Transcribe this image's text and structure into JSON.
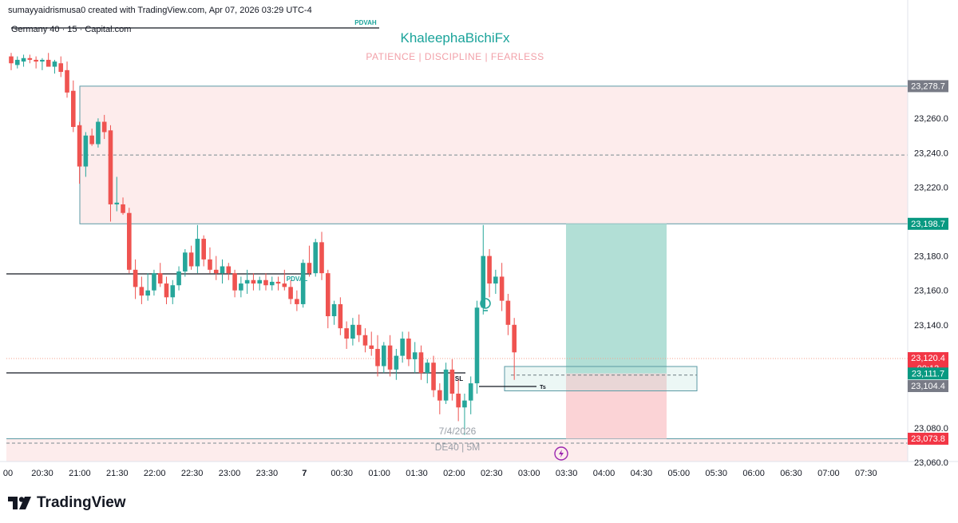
{
  "header": {
    "credit": "sumayyaidrismusa0 created with TradingView.com, Apr 07, 2026 03:29 UTC-4",
    "symbol": "Germany 40 · 15 · Capital.com"
  },
  "branding": {
    "title": "KhaleephaBichiFx",
    "motto": "PATIENCE | DISCIPLINE | FEARLESS",
    "watermark_date": "7/4/2026",
    "watermark_symbol": "DE40 | 5M",
    "footer_logo": "TradingView"
  },
  "colors": {
    "up": "#26a69a",
    "down": "#ef5350",
    "zone_fill": "#fdecec",
    "zone_border": "#5b9aa5",
    "profit_fill": "#b2dfd6",
    "loss_fill": "#fbd3d6",
    "teal_label": "#089981",
    "red_label": "#f23645",
    "gray_label": "#787b86",
    "brand": "#1aa39a"
  },
  "chart_data": {
    "type": "candlestick",
    "timeframe": "15",
    "ylim": [
      23042,
      23300
    ],
    "x_ticks": [
      "20:30",
      "21:00",
      "21:30",
      "22:00",
      "22:30",
      "23:00",
      "23:30",
      "7",
      "00:30",
      "01:00",
      "01:30",
      "02:00",
      "02:30",
      "03:00",
      "03:30",
      "04:00",
      "04:30",
      "05:00",
      "05:30",
      "06:00",
      "06:30",
      "07:00",
      "07:30"
    ],
    "y_ticks": [
      "23,260.0",
      "23,240.0",
      "23,220.0",
      "23,180.0",
      "23,160.0",
      "23,140.0",
      "23,080.0",
      "23,060.0"
    ],
    "candles": [
      [
        23296,
        23298,
        23288,
        23292
      ],
      [
        23291,
        23296,
        23289,
        23294
      ],
      [
        23293,
        23297,
        23290,
        23295
      ],
      [
        23295,
        23297,
        23292,
        23294
      ],
      [
        23294,
        23296,
        23289,
        23293
      ],
      [
        23293,
        23295,
        23288,
        23294
      ],
      [
        23294,
        23298,
        23291,
        23290
      ],
      [
        23290,
        23294,
        23286,
        23293
      ],
      [
        23292,
        23296,
        23284,
        23287
      ],
      [
        23288,
        23293,
        23272,
        23275
      ],
      [
        23276,
        23282,
        23252,
        23255
      ],
      [
        23256,
        23258,
        23222,
        23232
      ],
      [
        23232,
        23252,
        23226,
        23250
      ],
      [
        23250,
        23254,
        23244,
        23245
      ],
      [
        23245,
        23260,
        23243,
        23258
      ],
      [
        23258,
        23262,
        23248,
        23252
      ],
      [
        23253,
        23256,
        23200,
        23210
      ],
      [
        23210,
        23226,
        23206,
        23211
      ],
      [
        23210,
        23214,
        23204,
        23205
      ],
      [
        23205,
        23208,
        23170,
        23172
      ],
      [
        23172,
        23178,
        23155,
        23162
      ],
      [
        23162,
        23168,
        23152,
        23157
      ],
      [
        23157,
        23170,
        23154,
        23160
      ],
      [
        23160,
        23172,
        23157,
        23170
      ],
      [
        23170,
        23176,
        23162,
        23164
      ],
      [
        23164,
        23168,
        23152,
        23156
      ],
      [
        23156,
        23166,
        23152,
        23163
      ],
      [
        23163,
        23174,
        23160,
        23171
      ],
      [
        23171,
        23184,
        23168,
        23182
      ],
      [
        23182,
        23186,
        23172,
        23174
      ],
      [
        23174,
        23198,
        23170,
        23190
      ],
      [
        23190,
        23192,
        23174,
        23178
      ],
      [
        23178,
        23185,
        23170,
        23172
      ],
      [
        23172,
        23180,
        23166,
        23170
      ],
      [
        23170,
        23178,
        23164,
        23174
      ],
      [
        23174,
        23176,
        23166,
        23170
      ],
      [
        23170,
        23172,
        23156,
        23160
      ],
      [
        23160,
        23168,
        23156,
        23164
      ],
      [
        23164,
        23172,
        23158,
        23166
      ],
      [
        23166,
        23170,
        23160,
        23164
      ],
      [
        23164,
        23168,
        23160,
        23166
      ],
      [
        23166,
        23170,
        23160,
        23163
      ],
      [
        23163,
        23168,
        23160,
        23165
      ],
      [
        23165,
        23168,
        23160,
        23164
      ],
      [
        23164,
        23172,
        23160,
        23162
      ],
      [
        23162,
        23166,
        23152,
        23155
      ],
      [
        23155,
        23160,
        23148,
        23152
      ],
      [
        23152,
        23178,
        23150,
        23176
      ],
      [
        23176,
        23186,
        23168,
        23170
      ],
      [
        23170,
        23190,
        23168,
        23188
      ],
      [
        23188,
        23194,
        23166,
        23170
      ],
      [
        23170,
        23172,
        23138,
        23145
      ],
      [
        23145,
        23154,
        23140,
        23152
      ],
      [
        23152,
        23156,
        23134,
        23138
      ],
      [
        23138,
        23142,
        23126,
        23132
      ],
      [
        23132,
        23144,
        23128,
        23140
      ],
      [
        23140,
        23146,
        23130,
        23134
      ],
      [
        23134,
        23138,
        23124,
        23128
      ],
      [
        23128,
        23136,
        23122,
        23126
      ],
      [
        23126,
        23134,
        23110,
        23116
      ],
      [
        23116,
        23130,
        23112,
        23128
      ],
      [
        23128,
        23134,
        23110,
        23114
      ],
      [
        23114,
        23126,
        23108,
        23122
      ],
      [
        23122,
        23136,
        23118,
        23132
      ],
      [
        23132,
        23136,
        23116,
        23120
      ],
      [
        23120,
        23130,
        23112,
        23124
      ],
      [
        23124,
        23128,
        23108,
        23112
      ],
      [
        23112,
        23120,
        23106,
        23118
      ],
      [
        23118,
        23122,
        23098,
        23102
      ],
      [
        23102,
        23106,
        23088,
        23096
      ],
      [
        23096,
        23118,
        23094,
        23114
      ],
      [
        23114,
        23120,
        23096,
        23100
      ],
      [
        23100,
        23108,
        23084,
        23092
      ],
      [
        23092,
        23100,
        23076,
        23096
      ],
      [
        23096,
        23110,
        23088,
        23106
      ],
      [
        23106,
        23154,
        23100,
        23150
      ],
      [
        23150,
        23198,
        23146,
        23180
      ],
      [
        23180,
        23184,
        23156,
        23164
      ],
      [
        23164,
        23172,
        23158,
        23168
      ],
      [
        23168,
        23176,
        23148,
        23154
      ],
      [
        23154,
        23158,
        23134,
        23140
      ],
      [
        23140,
        23144,
        23108,
        23124
      ]
    ]
  },
  "levels": {
    "pdvah": {
      "label": "PDVAH",
      "price": 23294
    },
    "pdval": {
      "label": "PDVAL",
      "price": 23152
    },
    "sl": {
      "label": "SL",
      "price": 23097
    },
    "ts": {
      "label": "Ts",
      "price": 23087
    },
    "supply_zone": {
      "top": 23278.7,
      "bottom": 23198.7,
      "mid": 23238.7
    },
    "demand_zone": {
      "top": 23073.8,
      "bottom": 23042
    },
    "entry_box": {
      "top": 23113,
      "bottom": 23104.4
    },
    "current_price": 23120.4
  },
  "trade": {
    "entry": 23111.7,
    "target": 23198.7,
    "stop": 23073.8
  },
  "price_labels": [
    {
      "price_value": 23278.7,
      "text": "23,278.7",
      "color": "#787b86"
    },
    {
      "price_value": 23198.7,
      "text": "23,198.7",
      "color": "#089981"
    },
    {
      "price_value": 23120.4,
      "text": "23,120.4",
      "sub": "00:13",
      "color": "#f23645"
    },
    {
      "price_value": 23111.7,
      "text": "23,111.7",
      "color": "#089981"
    },
    {
      "price_value": 23104.4,
      "text": "23,104.4",
      "color": "#787b86"
    },
    {
      "price_value": 23073.8,
      "text": "23,073.8",
      "color": "#f23645"
    }
  ],
  "icons": [
    "lightbulb-icon",
    "lightning-icon",
    "tradingview-logo-icon"
  ]
}
